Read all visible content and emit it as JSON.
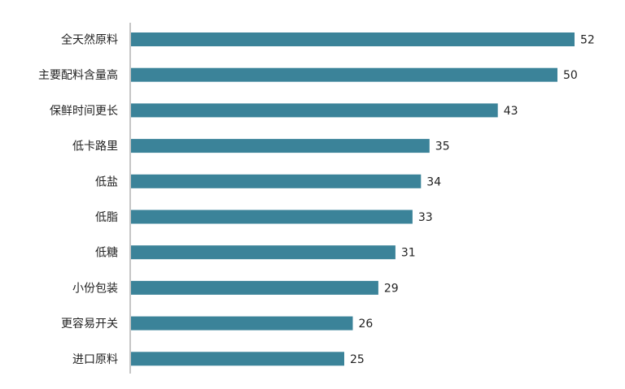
{
  "chart_data": {
    "type": "bar",
    "orientation": "horizontal",
    "categories": [
      "全天然原料",
      "主要配料含量高",
      "保鲜时间更长",
      "低卡路里",
      "低盐",
      "低脂",
      "低糖",
      "小份包装",
      "更容易开关",
      "进口原料"
    ],
    "values": [
      52,
      50,
      43,
      35,
      34,
      33,
      31,
      29,
      26,
      25
    ],
    "title": "",
    "xlabel": "",
    "ylabel": "",
    "xlim": [
      0,
      52
    ],
    "grid": false,
    "legend": "none",
    "data_labels": true,
    "bar_color": "#3b8399",
    "axis_color": "#8c8c8c"
  }
}
